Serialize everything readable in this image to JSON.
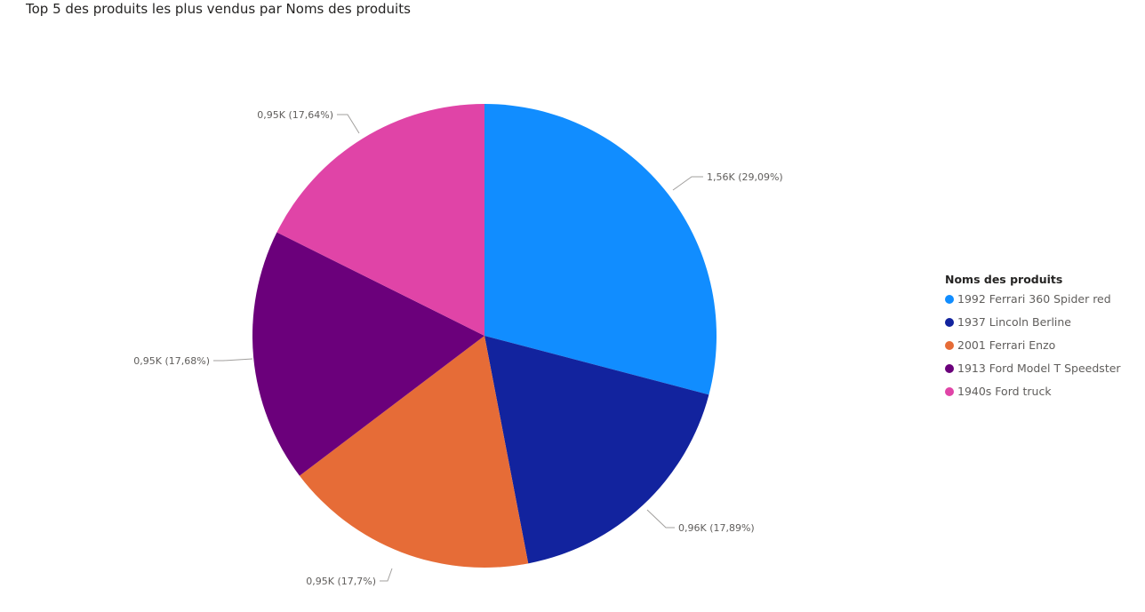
{
  "chart_data": {
    "type": "pie",
    "title": "Top 5 des produits les plus vendus par Noms des produits",
    "legend_title": "Noms des produits",
    "legend_position": "right",
    "slices": [
      {
        "label": "1992 Ferrari 360 Spider red",
        "value": 1.56,
        "percent": 29.09,
        "data_label": "1,56K (29,09%)",
        "color": "#118DFF"
      },
      {
        "label": "1937 Lincoln Berline",
        "value": 0.96,
        "percent": 17.89,
        "data_label": "0,96K (17,89%)",
        "color": "#12239E"
      },
      {
        "label": "2001 Ferrari Enzo",
        "value": 0.95,
        "percent": 17.7,
        "data_label": "0,95K (17,7%)",
        "color": "#E66C37"
      },
      {
        "label": "1913 Ford Model T Speedster",
        "value": 0.95,
        "percent": 17.68,
        "data_label": "0,95K (17,68%)",
        "color": "#6B007B"
      },
      {
        "label": "1940s Ford truck",
        "value": 0.95,
        "percent": 17.64,
        "data_label": "0,95K (17,64%)",
        "color": "#E044A7"
      }
    ]
  }
}
